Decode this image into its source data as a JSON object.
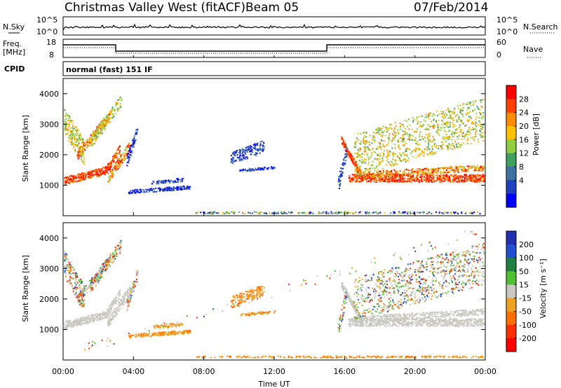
{
  "header": {
    "station": "Christmas Valley West (fitACF)",
    "beam": "Beam 05",
    "date": "07/Feb/2014"
  },
  "panels": {
    "nsky_label": "N.Sky",
    "nsky_ticks": [
      "10^5",
      "10^0"
    ],
    "nsearch_label": "N.Search",
    "nsearch_ticks": [
      "10^5",
      "10^0"
    ],
    "freq_label_1": "Freq.",
    "freq_label_2": "[MHz]",
    "freq_ticks": [
      "18",
      "8"
    ],
    "nave_label": "Nave",
    "nave_ticks": [
      "60",
      "0"
    ],
    "cpid_label": "CPID",
    "cpid_text": "normal (fast) 151 IF"
  },
  "chart_data": [
    {
      "type": "heatmap",
      "name": "power",
      "ylabel": "Slant Range [km]",
      "yticks": [
        "4000",
        "3000",
        "2000",
        "1000"
      ],
      "colorbar_label": "Power [dB]",
      "colorbar_ticks": [
        "28",
        "24",
        "20",
        "16",
        "12",
        "8",
        "4"
      ],
      "colors": [
        "#ff0000",
        "#ff4000",
        "#ff8c00",
        "#ffc000",
        "#90d040",
        "#3fa060",
        "#4070a0",
        "#2040c0",
        "#0000ff"
      ]
    },
    {
      "type": "heatmap",
      "name": "velocity",
      "ylabel": "Slant Range [km]",
      "yticks": [
        "4000",
        "3000",
        "2000",
        "1000"
      ],
      "colorbar_label": "Velocity [m s⁻¹]",
      "colorbar_ticks": [
        "200",
        "100",
        "50",
        "15",
        "-15",
        "-50",
        "-100",
        "-200"
      ],
      "colors": [
        "#2030b0",
        "#2050d0",
        "#208040",
        "#50c030",
        "#c8c8c0",
        "#f0a020",
        "#ff7000",
        "#ff3000",
        "#ff0000"
      ]
    }
  ],
  "xaxis": {
    "ticks": [
      "00:00",
      "04:00",
      "08:00",
      "12:00",
      "16:00",
      "20:00",
      "00:00"
    ],
    "label": "Time UT"
  }
}
